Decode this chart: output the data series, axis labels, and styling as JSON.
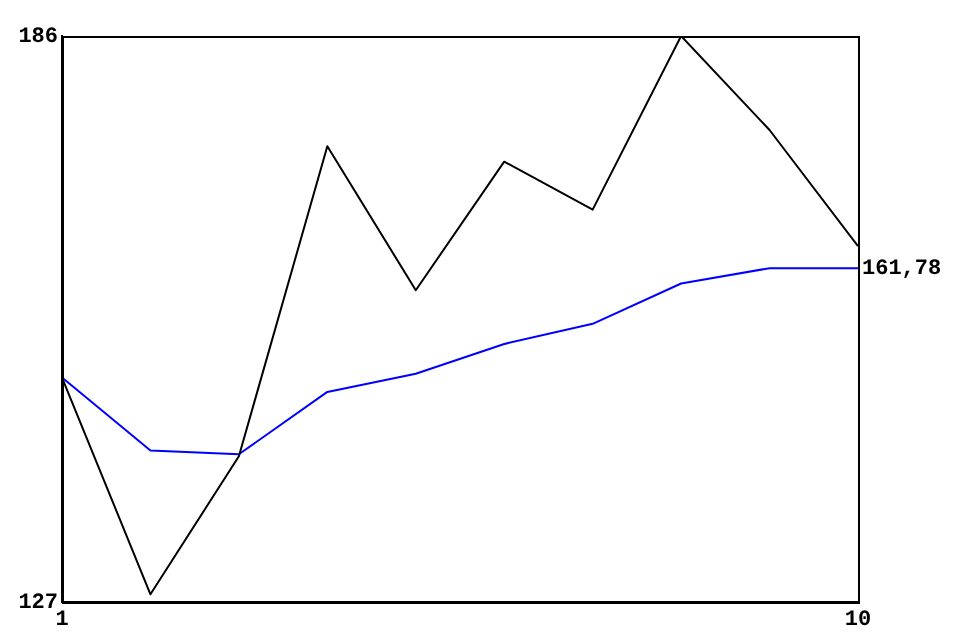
{
  "chart_data": {
    "type": "line",
    "x": [
      1,
      2,
      3,
      4,
      5,
      6,
      7,
      8,
      9,
      10
    ],
    "xlim": [
      1,
      10
    ],
    "xticks": [
      1,
      10
    ],
    "ylim": [
      127,
      186
    ],
    "yticks": [
      127,
      186
    ],
    "grid": false,
    "legend": false,
    "marker": "none",
    "line_style": "solid",
    "series": [
      {
        "color": "#000000",
        "values": [
          150.4,
          127.8,
          142.2,
          174.5,
          159.5,
          172.9,
          167.9,
          186,
          176.2,
          164.1
        ]
      },
      {
        "color": "#0000ff",
        "values": [
          150.4,
          142.8,
          142.4,
          148.9,
          150.8,
          153.9,
          156.0,
          160.2,
          161.8,
          161.78
        ],
        "value_labels": [
          null,
          null,
          null,
          null,
          null,
          null,
          null,
          null,
          null,
          "161,78"
        ]
      }
    ]
  }
}
